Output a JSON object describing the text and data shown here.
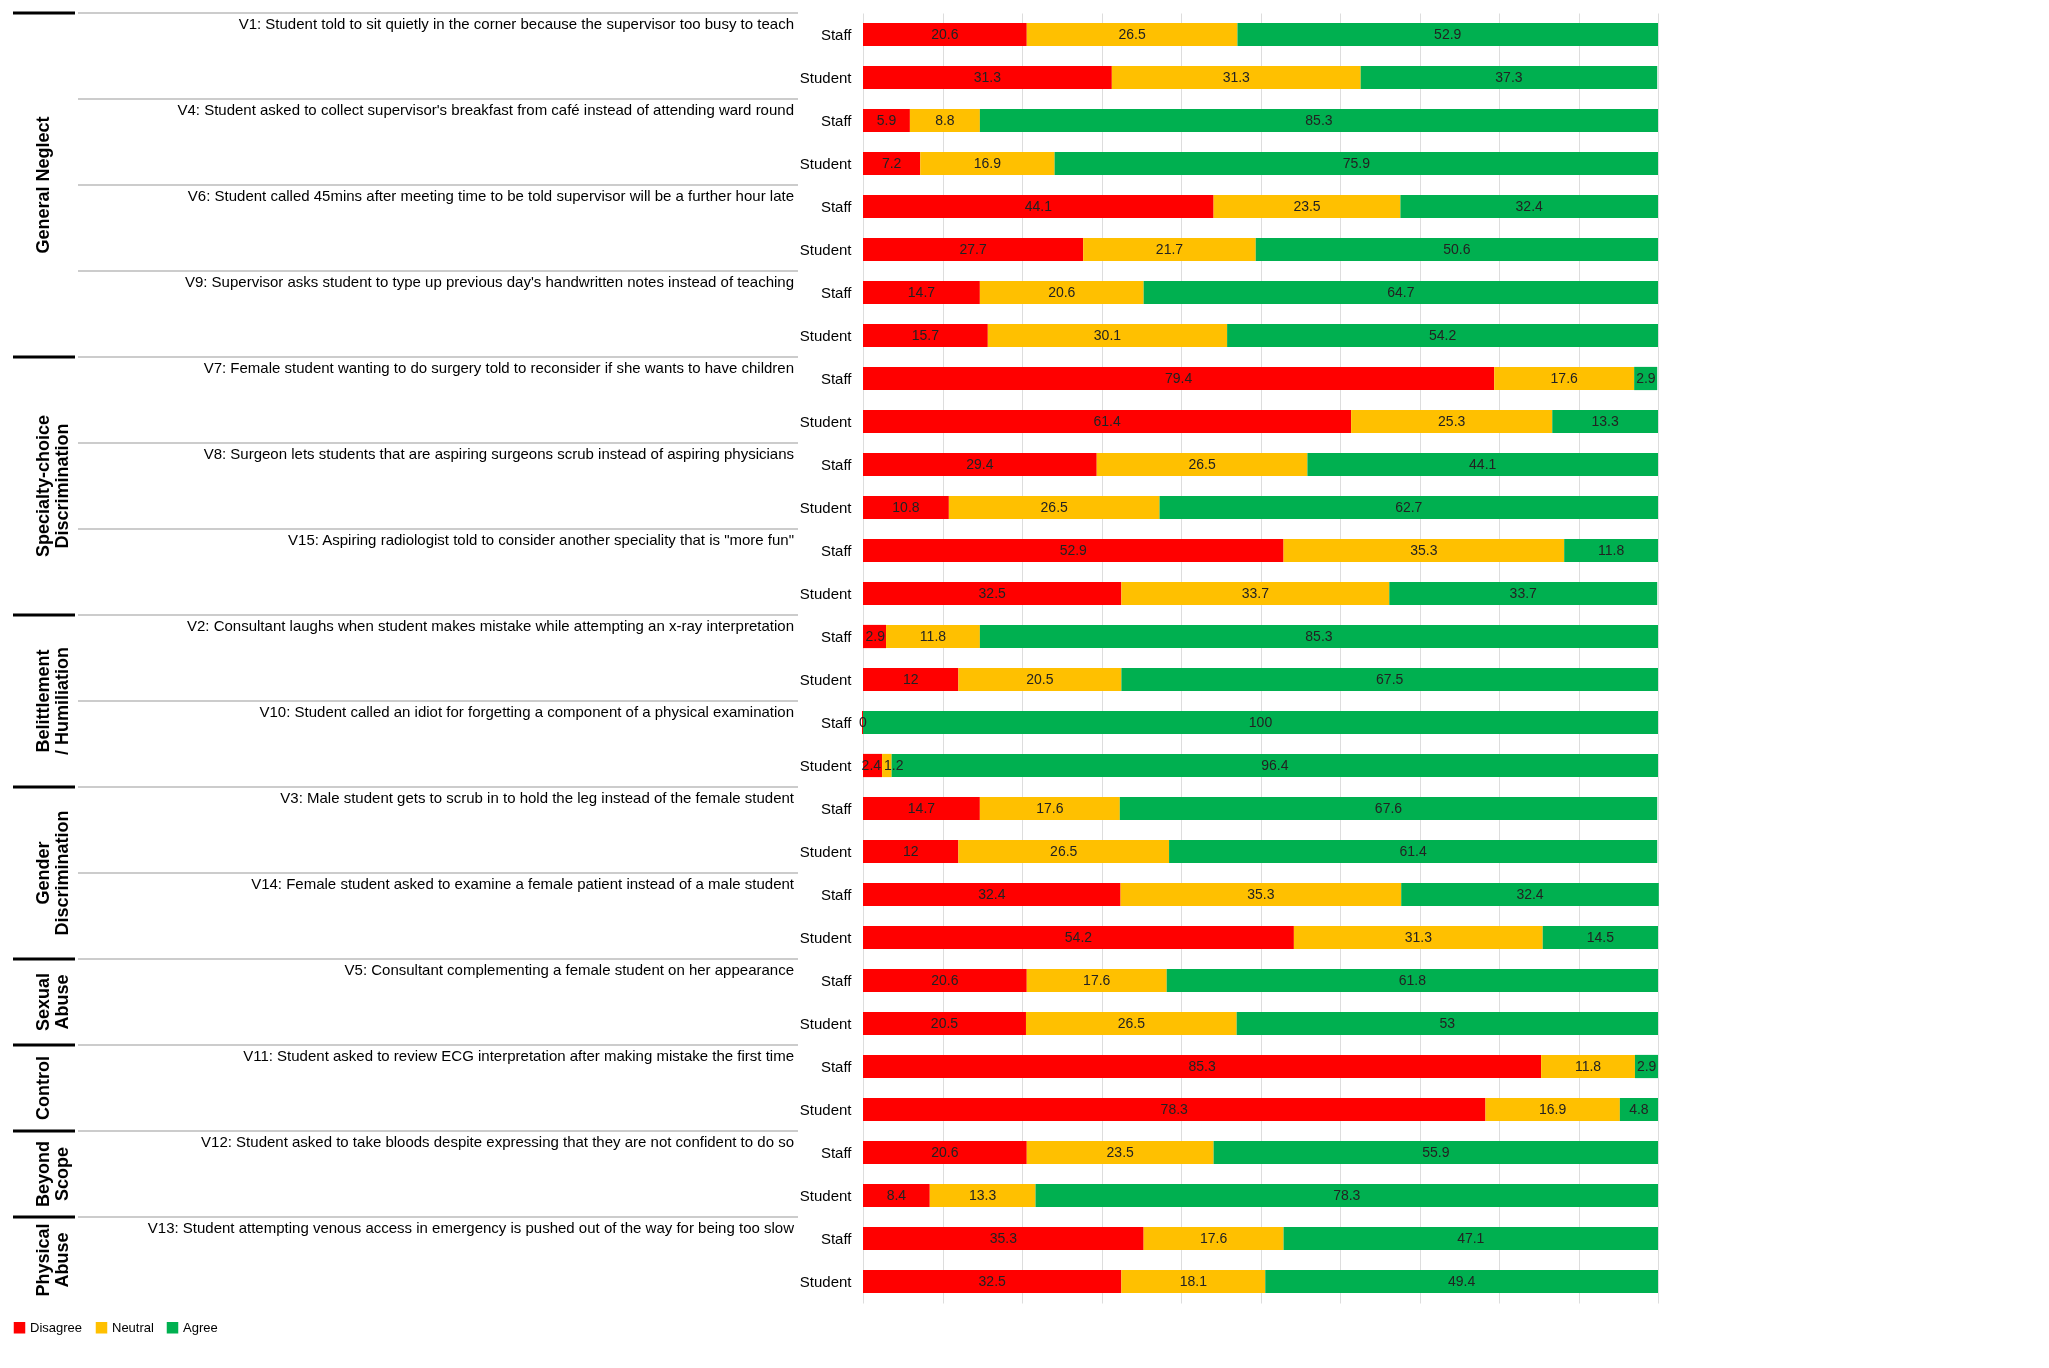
{
  "chart_data": {
    "type": "bar",
    "orientation": "horizontal",
    "stacked": true,
    "legend": "bottom",
    "grid": "x",
    "tick_labels": "y",
    "categories": [
      "Staff",
      "Student",
      "Staff",
      "Student",
      "Staff",
      "Student",
      "Staff",
      "Student",
      "Staff",
      "Student",
      "Staff",
      "Student",
      "Staff",
      "Student",
      "Staff",
      "Student",
      "Staff",
      "Student",
      "Staff",
      "Student",
      "Staff",
      "Student",
      "Staff",
      "Student",
      "Staff",
      "Student",
      "Staff",
      "Student",
      "Staff",
      "Student"
    ],
    "xlim": [
      0,
      100
    ],
    "xticks": [
      {
        "value": 0,
        "label": null
      },
      {
        "value": 10,
        "label": null
      },
      {
        "value": 20,
        "label": null
      },
      {
        "value": 30,
        "label": null
      },
      {
        "value": 40,
        "label": null
      },
      {
        "value": 50,
        "label": null
      },
      {
        "value": 60,
        "label": null
      },
      {
        "value": 70,
        "label": null
      },
      {
        "value": 80,
        "label": null
      },
      {
        "value": 90,
        "label": null
      },
      {
        "value": 100,
        "label": null
      }
    ],
    "series": [
      {
        "name": "Disagree",
        "color": "#ff0000",
        "values": [
          20.6,
          31.3,
          5.9,
          7.2,
          44.1,
          27.7,
          14.7,
          15.7,
          79.4,
          61.4,
          29.4,
          10.8,
          52.9,
          32.5,
          2.9,
          12,
          0,
          2.4,
          14.7,
          12,
          32.4,
          54.2,
          20.6,
          20.5,
          85.3,
          78.3,
          20.6,
          8.4,
          35.3,
          32.5
        ],
        "value_labels": [
          "20.6",
          "31.3",
          "5.9",
          "7.2",
          "44.1",
          "27.7",
          "14.7",
          "15.7",
          "79.4",
          "61.4",
          "29.4",
          "10.8",
          "52.9",
          "32.5",
          "2.9",
          "12",
          "0",
          "2.4",
          "14.7",
          "12",
          "32.4",
          "54.2",
          "20.6",
          "20.5",
          "85.3",
          "78.3",
          "20.6",
          "8.4",
          "35.3",
          "32.5"
        ]
      },
      {
        "name": "Neutral",
        "color": "#ffc000",
        "values": [
          26.5,
          31.3,
          8.8,
          16.9,
          23.5,
          21.7,
          20.6,
          30.1,
          17.6,
          25.3,
          26.5,
          26.5,
          35.3,
          33.7,
          11.8,
          20.5,
          null,
          1.2,
          17.6,
          26.5,
          35.3,
          31.3,
          17.6,
          26.5,
          11.8,
          16.9,
          23.5,
          13.3,
          17.6,
          18.1
        ],
        "value_labels": [
          "26.5",
          "31.3",
          "8.8",
          "16.9",
          "23.5",
          "21.7",
          "20.6",
          "30.1",
          "17.6",
          "25.3",
          "26.5",
          "26.5",
          "35.3",
          "33.7",
          "11.8",
          "20.5",
          null,
          "1.2",
          "17.6",
          "26.5",
          "35.3",
          "31.3",
          "17.6",
          "26.5",
          "11.8",
          "16.9",
          "23.5",
          "13.3",
          "17.6",
          "18.1"
        ]
      },
      {
        "name": "Agree",
        "color": "#00b050",
        "values": [
          52.9,
          37.3,
          85.3,
          75.9,
          32.4,
          50.6,
          64.7,
          54.2,
          2.9,
          13.3,
          44.1,
          62.7,
          11.8,
          33.7,
          85.3,
          67.5,
          100,
          96.4,
          67.6,
          61.4,
          32.4,
          14.5,
          61.8,
          53,
          2.9,
          4.8,
          55.9,
          78.3,
          47.1,
          49.4
        ],
        "value_labels": [
          "52.9",
          "37.3",
          "85.3",
          "75.9",
          "32.4",
          "50.6",
          "64.7",
          "54.2",
          "2.9",
          "13.3",
          "44.1",
          "62.7",
          "11.8",
          "33.7",
          "85.3",
          "67.5",
          "100",
          "96.4",
          "67.6",
          "61.4",
          "32.4",
          "14.5",
          "61.8",
          "53",
          "2.9",
          "4.8",
          "55.9",
          "78.3",
          "47.1",
          "49.4"
        ]
      }
    ],
    "annotations": [
      "V1: Student told to sit quietly in the corner because the supervisor too busy to teach",
      "V4: Student asked to collect supervisor's breakfast from café instead of attending ward round",
      "V6: Student called 45mins after meeting time to be told supervisor will be a further hour late",
      "V9: Supervisor asks student to type up previous day's handwritten notes instead of teaching",
      "V7: Female student wanting to do surgery told to reconsider if she wants to have children",
      "V8: Surgeon lets students that are aspiring surgeons scrub instead of aspiring physicians",
      "V15: Aspiring radiologist told to consider another speciality that is \"more fun\"",
      "V2: Consultant laughs when student makes mistake while attempting an x-ray interpretation",
      "V10: Student called an idiot for forgetting a component of a physical examination",
      "V3: Male student gets to scrub in to hold the leg instead of the female student",
      "V14: Female student asked to examine a female patient instead of a male student",
      "V5: Consultant complementing a female student on her appearance",
      "V11: Student asked to review ECG interpretation after making mistake the first time",
      "V12: Student asked to take bloods despite expressing that they are not confident to do so",
      "V13: Student attempting venous access in emergency is pushed out of the way for being too slow",
      "General Neglect",
      "Specialty-choice Discrimination",
      "Belittlement / Humiliation",
      "Gender Discrimination",
      "Sexual Abuse",
      "Control",
      "Beyond Scope",
      "Physical Abuse"
    ]
  }
}
